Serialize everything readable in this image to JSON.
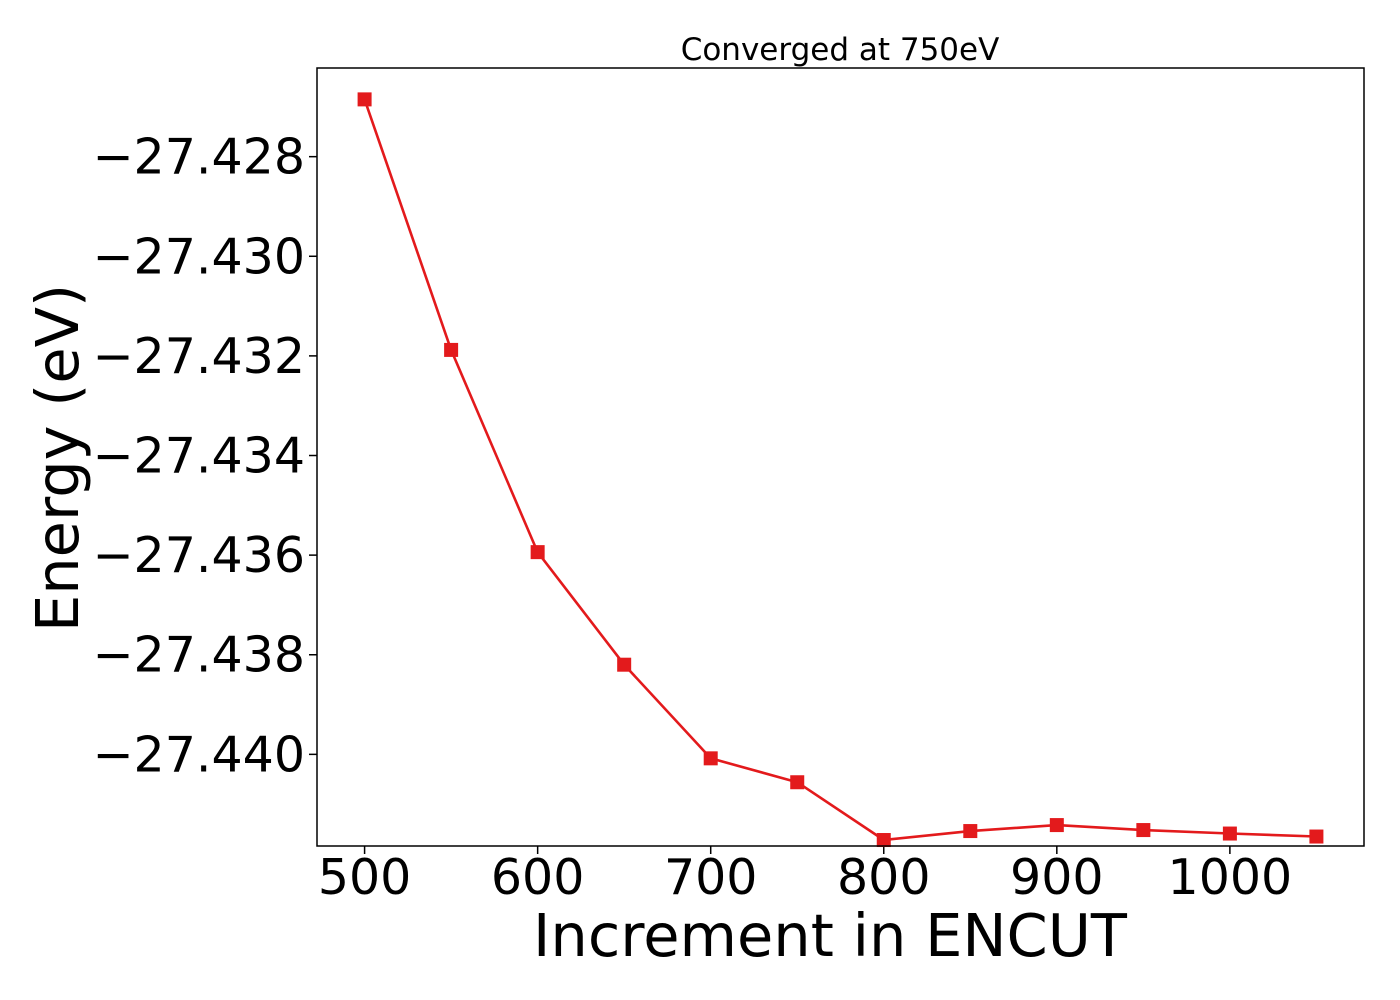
{
  "chart_data": {
    "type": "line",
    "title": "Converged at 750eV",
    "xlabel": "Increment in ENCUT",
    "ylabel": "Energy (eV)",
    "xlim": [
      472.5,
      1077.5
    ],
    "ylim": [
      -27.44184,
      -27.42622
    ],
    "x_ticks": [
      500,
      600,
      700,
      800,
      900,
      1000
    ],
    "y_ticks": [
      -27.428,
      -27.43,
      -27.432,
      -27.434,
      -27.436,
      -27.438,
      -27.44
    ],
    "x_tick_labels": [
      "500",
      "600",
      "700",
      "800",
      "900",
      "1000"
    ],
    "y_tick_labels": [
      "−27.428",
      "−27.430",
      "−27.432",
      "−27.434",
      "−27.436",
      "−27.438",
      "−27.440"
    ],
    "grid": false,
    "series": [
      {
        "color": "#e31a1c",
        "marker": "square",
        "x": [
          500,
          550,
          600,
          650,
          700,
          750,
          800,
          850,
          900,
          950,
          1000,
          1050
        ],
        "y": [
          -27.42685,
          -27.43188,
          -27.43594,
          -27.4382,
          -27.44008,
          -27.44056,
          -27.44172,
          -27.44154,
          -27.44142,
          -27.44152,
          -27.44159,
          -27.44165
        ]
      }
    ]
  }
}
